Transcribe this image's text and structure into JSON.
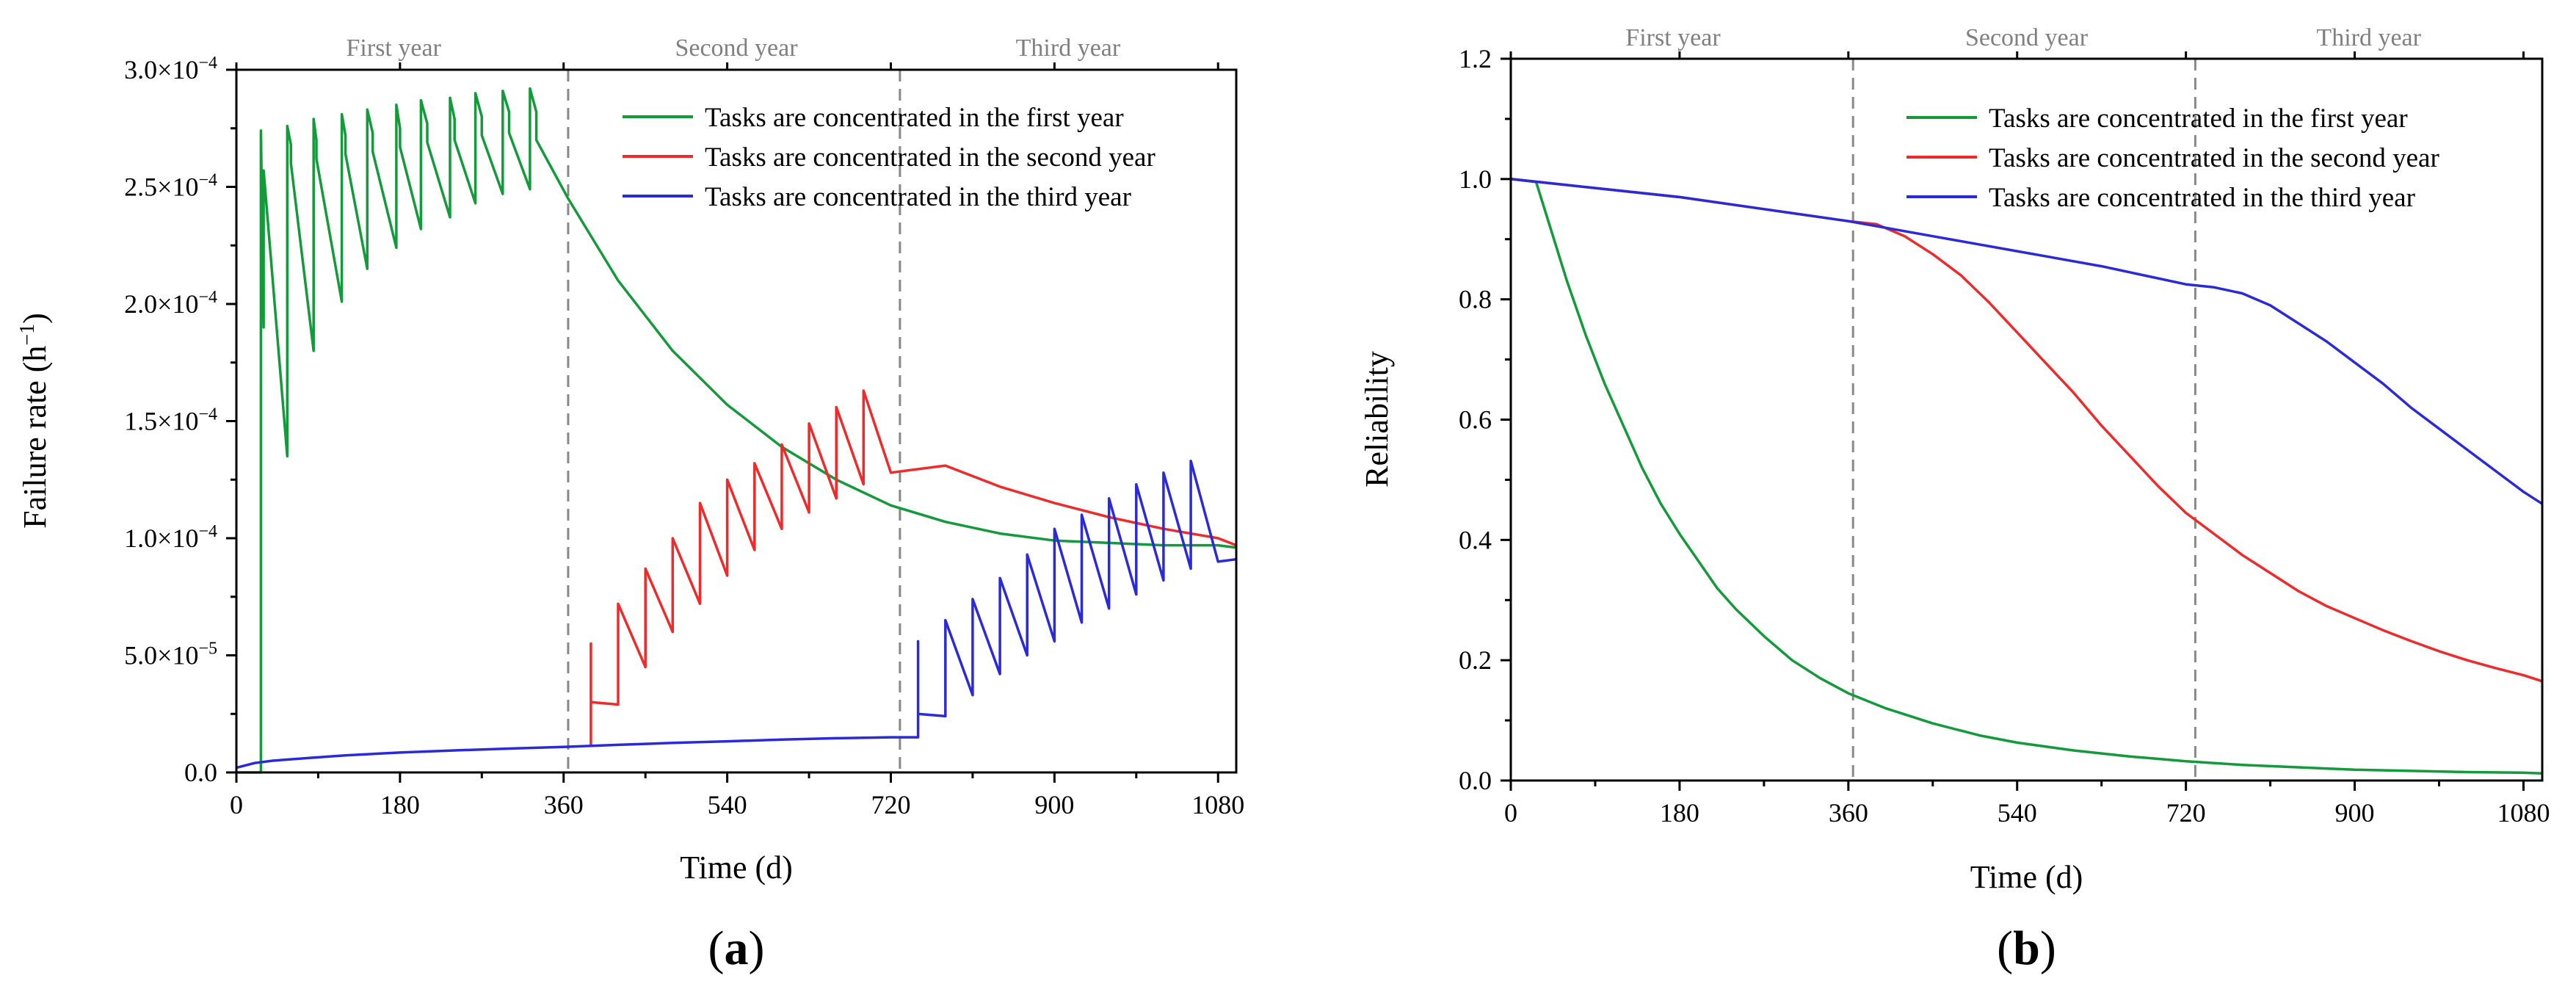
{
  "colors": {
    "green": "#139a3b",
    "red": "#ee2a2a",
    "blue": "#2b2ad8",
    "period": "#808080"
  },
  "chart_data": [
    {
      "type": "line",
      "panel_label": "(a)",
      "xlabel": "Time (d)",
      "ylabel_main": "Failure rate (h",
      "ylabel_exp": "−1",
      "ylabel_close": ")",
      "xlim": [
        0,
        1100
      ],
      "ylim": [
        0,
        0.0003
      ],
      "x_ticks": [
        0,
        180,
        360,
        540,
        720,
        900,
        1080
      ],
      "x_tick_labels": [
        "0",
        "180",
        "360",
        "540",
        "720",
        "900",
        "1080"
      ],
      "y_ticks": [
        0,
        5e-05,
        0.0001,
        0.00015,
        0.0002,
        0.00025,
        0.0003
      ],
      "y_tick_labels": [
        {
          "mant": "0.0",
          "exp": ""
        },
        {
          "mant": "5.0×10",
          "exp": "−5"
        },
        {
          "mant": "1.0×10",
          "exp": "−4"
        },
        {
          "mant": "1.5×10",
          "exp": "−4"
        },
        {
          "mant": "2.0×10",
          "exp": "−4"
        },
        {
          "mant": "2.5×10",
          "exp": "−4"
        },
        {
          "mant": "3.0×10",
          "exp": "−4"
        }
      ],
      "period_lines": [
        365,
        730
      ],
      "period_labels": [
        {
          "text": "First year",
          "x": 173
        },
        {
          "text": "Second year",
          "x": 550
        },
        {
          "text": "Third year",
          "x": 915
        }
      ],
      "legend": [
        "Tasks are concentrated in the first year",
        "Tasks are concentrated in the second year",
        "Tasks are concentrated in the third year"
      ],
      "series": [
        {
          "name": "Tasks are concentrated in the first year",
          "color": "green",
          "x": [
            0,
            27,
            27,
            30,
            30,
            56,
            56,
            60,
            60,
            85,
            85,
            88,
            88,
            116,
            116,
            120,
            120,
            144,
            144,
            150,
            150,
            176,
            176,
            180,
            180,
            203,
            203,
            210,
            210,
            235,
            235,
            240,
            240,
            263,
            263,
            270,
            270,
            293,
            293,
            300,
            300,
            323,
            323,
            330,
            330,
            365,
            420,
            480,
            540,
            600,
            660,
            720,
            780,
            840,
            900,
            960,
            1020,
            1080,
            1100
          ],
          "y": [
            0,
            0,
            0.000274,
            0.00019,
            0.000257,
            0.000135,
            0.000276,
            0.000268,
            0.00026,
            0.00018,
            0.000279,
            0.00027,
            0.000262,
            0.000201,
            0.000281,
            0.000272,
            0.000264,
            0.000215,
            0.000283,
            0.000273,
            0.000265,
            0.000224,
            0.000285,
            0.000275,
            0.000267,
            0.000232,
            0.000287,
            0.000277,
            0.000269,
            0.000237,
            0.000288,
            0.000279,
            0.00027,
            0.000243,
            0.00029,
            0.00028,
            0.000272,
            0.000247,
            0.000291,
            0.000282,
            0.000273,
            0.000249,
            0.000292,
            0.000282,
            0.00027,
            0.000245,
            0.00021,
            0.00018,
            0.000157,
            0.000139,
            0.000125,
            0.000114,
            0.000107,
            0.000102,
            9.9e-05,
            9.8e-05,
            9.7e-05,
            9.7e-05,
            9.6e-05
          ]
        },
        {
          "name": "Tasks are concentrated in the second year",
          "color": "red",
          "x": [
            390,
            390,
            390,
            420,
            420,
            450,
            450,
            480,
            480,
            510,
            510,
            540,
            540,
            570,
            570,
            600,
            600,
            630,
            630,
            660,
            660,
            690,
            690,
            720,
            780,
            840,
            900,
            960,
            1020,
            1080,
            1100
          ],
          "y": [
            1.1e-05,
            5.5e-05,
            3e-05,
            2.9e-05,
            7.2e-05,
            4.5e-05,
            8.7e-05,
            6e-05,
            0.0001,
            7.2e-05,
            0.000115,
            8.4e-05,
            0.000125,
            9.5e-05,
            0.000132,
            0.000104,
            0.00014,
            0.000111,
            0.000149,
            0.000117,
            0.000156,
            0.000123,
            0.000163,
            0.000128,
            0.000131,
            0.000122,
            0.000115,
            0.000109,
            0.000104,
            0.0001,
            9.7e-05
          ]
        },
        {
          "name": "Tasks are concentrated in the third year",
          "color": "blue",
          "x": [
            0,
            20,
            40,
            80,
            120,
            180,
            240,
            300,
            360,
            420,
            480,
            540,
            600,
            660,
            720,
            750,
            750,
            750,
            780,
            780,
            810,
            810,
            840,
            840,
            870,
            870,
            900,
            900,
            930,
            930,
            960,
            960,
            990,
            990,
            1020,
            1020,
            1050,
            1050,
            1080,
            1100
          ],
          "y": [
            2e-06,
            4e-06,
            5e-06,
            6.2e-06,
            7.3e-06,
            8.5e-06,
            9.4e-06,
            1.02e-05,
            1.09e-05,
            1.18e-05,
            1.26e-05,
            1.33e-05,
            1.4e-05,
            1.46e-05,
            1.5e-05,
            1.5e-05,
            5.6e-05,
            2.5e-05,
            2.4e-05,
            6.5e-05,
            3.3e-05,
            7.4e-05,
            4.2e-05,
            8.3e-05,
            5e-05,
            9.3e-05,
            5.6e-05,
            0.000104,
            6.4e-05,
            0.00011,
            7e-05,
            0.000117,
            7.6e-05,
            0.000123,
            8.2e-05,
            0.000128,
            8.7e-05,
            0.000133,
            9e-05,
            9.1e-05
          ]
        }
      ]
    },
    {
      "type": "line",
      "panel_label": "(b)",
      "xlabel": "Time (d)",
      "ylabel_main": "Reliability",
      "xlim": [
        0,
        1100
      ],
      "ylim": [
        0,
        1.2
      ],
      "x_ticks": [
        0,
        180,
        360,
        540,
        720,
        900,
        1080
      ],
      "x_tick_labels": [
        "0",
        "180",
        "360",
        "540",
        "720",
        "900",
        "1080"
      ],
      "y_ticks": [
        0,
        0.2,
        0.4,
        0.6,
        0.8,
        1.0,
        1.2
      ],
      "y_tick_labels": [
        {
          "mant": "0.0",
          "exp": ""
        },
        {
          "mant": "0.2",
          "exp": ""
        },
        {
          "mant": "0.4",
          "exp": ""
        },
        {
          "mant": "0.6",
          "exp": ""
        },
        {
          "mant": "0.8",
          "exp": ""
        },
        {
          "mant": "1.0",
          "exp": ""
        },
        {
          "mant": "1.2",
          "exp": ""
        }
      ],
      "period_lines": [
        365,
        730
      ],
      "period_labels": [
        {
          "text": "First year",
          "x": 173
        },
        {
          "text": "Second year",
          "x": 550
        },
        {
          "text": "Third year",
          "x": 915
        }
      ],
      "legend": [
        "Tasks are concentrated in the first year",
        "Tasks are concentrated in the second year",
        "Tasks are concentrated in the third year"
      ],
      "series": [
        {
          "name": "Tasks are concentrated in the first year",
          "color": "green",
          "x": [
            0,
            27,
            40,
            60,
            80,
            100,
            120,
            140,
            160,
            180,
            200,
            220,
            240,
            270,
            300,
            330,
            360,
            400,
            450,
            500,
            540,
            600,
            660,
            720,
            780,
            840,
            900,
            960,
            1020,
            1080,
            1100
          ],
          "y": [
            1.0,
            0.995,
            0.93,
            0.83,
            0.74,
            0.66,
            0.59,
            0.52,
            0.46,
            0.41,
            0.365,
            0.32,
            0.285,
            0.24,
            0.2,
            0.17,
            0.145,
            0.12,
            0.095,
            0.075,
            0.063,
            0.05,
            0.04,
            0.032,
            0.026,
            0.022,
            0.018,
            0.016,
            0.014,
            0.013,
            0.012
          ]
        },
        {
          "name": "Tasks are concentrated in the second year",
          "color": "red",
          "x": [
            0,
            90,
            180,
            270,
            360,
            390,
            420,
            450,
            480,
            510,
            540,
            570,
            600,
            630,
            660,
            690,
            720,
            750,
            780,
            810,
            840,
            870,
            900,
            930,
            960,
            990,
            1020,
            1050,
            1080,
            1100
          ],
          "y": [
            1.0,
            0.985,
            0.97,
            0.95,
            0.93,
            0.925,
            0.905,
            0.875,
            0.84,
            0.795,
            0.745,
            0.695,
            0.645,
            0.59,
            0.54,
            0.49,
            0.445,
            0.41,
            0.375,
            0.345,
            0.315,
            0.29,
            0.27,
            0.25,
            0.232,
            0.215,
            0.2,
            0.187,
            0.175,
            0.165
          ]
        },
        {
          "name": "Tasks are concentrated in the third year",
          "color": "blue",
          "x": [
            0,
            90,
            180,
            270,
            360,
            450,
            540,
            630,
            720,
            750,
            780,
            810,
            840,
            870,
            900,
            930,
            960,
            990,
            1020,
            1050,
            1080,
            1100
          ],
          "y": [
            1.0,
            0.985,
            0.97,
            0.95,
            0.93,
            0.905,
            0.88,
            0.855,
            0.825,
            0.82,
            0.81,
            0.79,
            0.76,
            0.73,
            0.695,
            0.66,
            0.62,
            0.585,
            0.55,
            0.515,
            0.48,
            0.46
          ]
        }
      ]
    }
  ]
}
